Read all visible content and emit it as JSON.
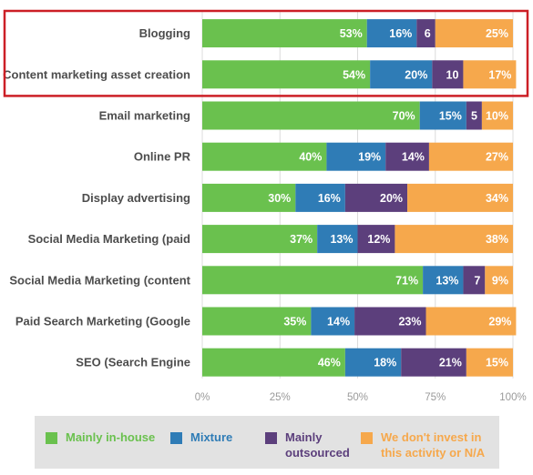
{
  "chart_data": {
    "type": "bar",
    "orientation": "horizontal",
    "stacked": true,
    "categories": [
      "Blogging",
      "Content marketing asset creation",
      "Email marketing",
      "Online PR",
      "Display advertising",
      "Social Media Marketing (paid",
      "Social Media Marketing (content",
      "Paid Search Marketing (Google",
      "SEO (Search Engine"
    ],
    "series": [
      {
        "name": "Mainly in-house",
        "color": "#6ac14e",
        "values": [
          53,
          54,
          70,
          40,
          30,
          37,
          71,
          35,
          46
        ],
        "labels": [
          "53%",
          "54%",
          "70%",
          "40%",
          "30%",
          "37%",
          "71%",
          "35%",
          "46%"
        ]
      },
      {
        "name": "Mixture",
        "color": "#2f7cb6",
        "values": [
          16,
          20,
          15,
          19,
          16,
          13,
          13,
          14,
          18
        ],
        "labels": [
          "16%",
          "20%",
          "15%",
          "19%",
          "16%",
          "13%",
          "13%",
          "14%",
          "18%"
        ]
      },
      {
        "name": "Mainly outsourced",
        "color": "#5c3f7c",
        "values": [
          6,
          10,
          5,
          14,
          20,
          12,
          7,
          23,
          21
        ],
        "labels": [
          "6",
          "10",
          "5",
          "14%",
          "20%",
          "12%",
          "7",
          "23%",
          "21%"
        ]
      },
      {
        "name": "We don't invest in this activity or N/A",
        "color": "#f6a84c",
        "values": [
          25,
          17,
          10,
          27,
          34,
          38,
          9,
          29,
          15
        ],
        "labels": [
          "25%",
          "17%",
          "10%",
          "27%",
          "34%",
          "38%",
          "9%",
          "29%",
          "15%"
        ]
      }
    ],
    "xlim": [
      0,
      100
    ],
    "xticks": [
      "0%",
      "25%",
      "50%",
      "75%",
      "100%"
    ],
    "grid": true,
    "legend_position": "bottom",
    "highlight": {
      "categories": [
        "Blogging",
        "Content marketing asset creation"
      ],
      "color": "#cc1f26"
    }
  },
  "legend": {
    "items": [
      {
        "label_lines": [
          "Mainly in-house"
        ],
        "color": "#6ac14e",
        "text_color": "#6ac14e"
      },
      {
        "label_lines": [
          "Mixture"
        ],
        "color": "#2f7cb6",
        "text_color": "#2f7cb6"
      },
      {
        "label_lines": [
          "Mainly",
          "outsourced"
        ],
        "color": "#5c3f7c",
        "text_color": "#5c3f7c"
      },
      {
        "label_lines": [
          "We don't invest in",
          "this activity or N/A"
        ],
        "color": "#f6a84c",
        "text_color": "#f6a84c"
      }
    ]
  }
}
